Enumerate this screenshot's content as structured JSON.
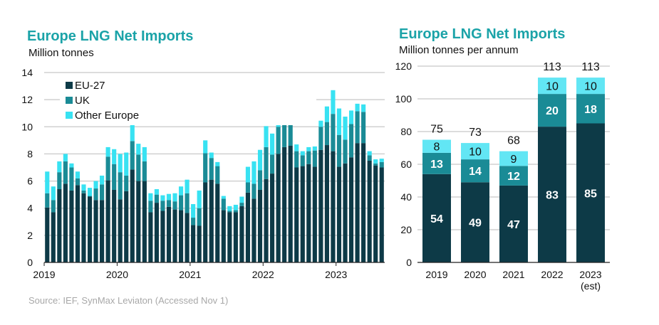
{
  "source": "Source: IEF, SynMax Leviaton  (Accessed Nov 1)",
  "colors": {
    "eu": "#0d3a47",
    "uk": "#1a8b96",
    "other_left": "#38e2f2",
    "other_right": "#62e6f4",
    "title": "#1ba3a8"
  },
  "chart_data": [
    {
      "type": "bar",
      "stacked": true,
      "title": "Europe LNG Net Imports",
      "subtitle": "Million tonnes",
      "ylim": [
        0,
        14
      ],
      "yticks": [
        0,
        2,
        4,
        6,
        8,
        10,
        12,
        14
      ],
      "xtick_labels": [
        "2019",
        "2020",
        "2021",
        "2022",
        "2023"
      ],
      "grid": true,
      "legend": "top-left",
      "categories": [
        "2019-01",
        "2019-02",
        "2019-03",
        "2019-04",
        "2019-05",
        "2019-06",
        "2019-07",
        "2019-08",
        "2019-09",
        "2019-10",
        "2019-11",
        "2019-12",
        "2020-01",
        "2020-02",
        "2020-03",
        "2020-04",
        "2020-05",
        "2020-06",
        "2020-07",
        "2020-08",
        "2020-09",
        "2020-10",
        "2020-11",
        "2020-12",
        "2021-01",
        "2021-02",
        "2021-03",
        "2021-04",
        "2021-05",
        "2021-06",
        "2021-07",
        "2021-08",
        "2021-09",
        "2021-10",
        "2021-11",
        "2021-12",
        "2022-01",
        "2022-02",
        "2022-03",
        "2022-04",
        "2022-05",
        "2022-06",
        "2022-07",
        "2022-08",
        "2022-09",
        "2022-10",
        "2022-11",
        "2022-12",
        "2023-01",
        "2023-02",
        "2023-03",
        "2023-04",
        "2023-05",
        "2023-06",
        "2023-07",
        "2023-08"
      ],
      "series": [
        {
          "name": "EU-27",
          "values": [
            4.05,
            3.7,
            5.4,
            5.8,
            5.3,
            5.7,
            5.1,
            4.85,
            4.6,
            4.6,
            6.05,
            5.35,
            4.65,
            5.25,
            6.85,
            6.0,
            6.0,
            3.7,
            4.4,
            3.8,
            4.1,
            3.9,
            3.85,
            3.65,
            2.75,
            2.7,
            5.9,
            6.1,
            5.8,
            3.85,
            3.7,
            3.7,
            4.15,
            5.15,
            4.7,
            5.35,
            6.15,
            6.55,
            8.0,
            8.5,
            8.6,
            7.0,
            7.1,
            7.25,
            7.05,
            8.3,
            8.65,
            8.2,
            7.05,
            7.3,
            7.75,
            8.8,
            8.8,
            7.5,
            7.15,
            7.0
          ]
        },
        {
          "name": "UK",
          "values": [
            1.05,
            0.9,
            1.25,
            1.65,
            1.7,
            0.5,
            0.2,
            0.05,
            0.85,
            1.15,
            1.75,
            1.9,
            2.0,
            1.15,
            2.1,
            1.95,
            1.45,
            0.85,
            0.6,
            0.75,
            0.5,
            0.6,
            1.1,
            1.45,
            0.55,
            1.3,
            2.15,
            1.6,
            1.3,
            0.85,
            0.1,
            0.15,
            0.25,
            0.75,
            1.1,
            1.45,
            2.35,
            1.4,
            2.0,
            2.05,
            1.9,
            1.2,
            0.8,
            0.95,
            1.2,
            1.7,
            1.7,
            2.75,
            2.35,
            1.75,
            2.45,
            2.35,
            2.3,
            0.4,
            0.15,
            0.4
          ]
        },
        {
          "name": "Other Europe",
          "values": [
            1.6,
            1.0,
            0.8,
            0.55,
            0.3,
            0.5,
            0.45,
            0.6,
            0.55,
            0.65,
            0.7,
            1.1,
            1.35,
            1.7,
            1.25,
            0.8,
            1.05,
            0.55,
            0.4,
            0.4,
            0.45,
            0.6,
            0.65,
            1.0,
            1.0,
            1.3,
            0.95,
            0.4,
            0.3,
            0.2,
            0.35,
            0.4,
            0.45,
            1.15,
            1.65,
            1.5,
            1.55,
            1.55,
            1.5,
            0.45,
            0.45,
            0.5,
            0.3,
            0.3,
            0.3,
            0.45,
            1.15,
            1.75,
            1.95,
            1.7,
            1.0,
            0.55,
            0.55,
            0.3,
            0.3,
            0.25
          ]
        }
      ]
    },
    {
      "type": "bar",
      "stacked": true,
      "title": "Europe LNG Net Imports",
      "subtitle": "Million tonnes per annum",
      "ylim": [
        0,
        120
      ],
      "yticks": [
        0,
        20,
        40,
        60,
        80,
        100,
        120
      ],
      "grid": true,
      "categories": [
        "2019",
        "2020",
        "2021",
        "2022",
        "2023\n(est)"
      ],
      "category_lines": [
        [
          "2019"
        ],
        [
          "2020"
        ],
        [
          "2021"
        ],
        [
          "2022"
        ],
        [
          "2023",
          "(est)"
        ]
      ],
      "totals": [
        75,
        73,
        68,
        113,
        113
      ],
      "series": [
        {
          "name": "EU-27",
          "values": [
            54,
            49,
            47,
            83,
            85
          ]
        },
        {
          "name": "UK",
          "values": [
            13,
            14,
            12,
            20,
            18
          ]
        },
        {
          "name": "Other Europe",
          "values": [
            8,
            10,
            9,
            10,
            10
          ]
        }
      ]
    }
  ]
}
